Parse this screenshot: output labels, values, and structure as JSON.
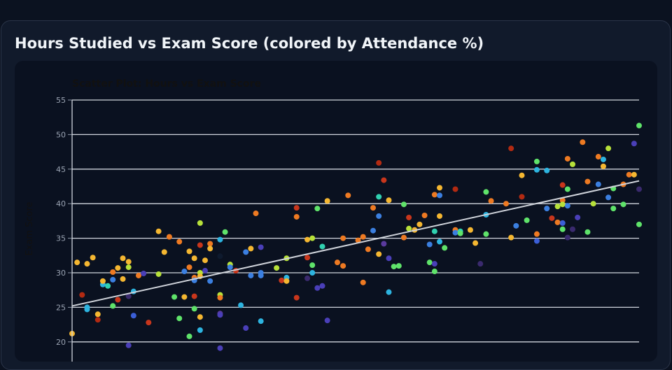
{
  "panel": {
    "title": "Hours Studied vs Exam Score (colored by Attendance %)"
  },
  "chart_data": {
    "type": "scatter",
    "title": "Scatter Plot: Hours vs Exam Score",
    "xlabel": "",
    "ylabel": "Exam Score",
    "ylim": [
      20,
      55
    ],
    "yticks": [
      20,
      25,
      30,
      35,
      40,
      45,
      50,
      55
    ],
    "grid": true,
    "points": [
      {
        "x": 0.0,
        "y": 21.2,
        "color": "#f5b731"
      },
      {
        "x": 0.07,
        "y": 31.5,
        "color": "#f5b731"
      },
      {
        "x": 0.14,
        "y": 26.8,
        "color": "#b22a12"
      },
      {
        "x": 0.21,
        "y": 31.3,
        "color": "#f5b731"
      },
      {
        "x": 0.21,
        "y": 25.0,
        "color": "#2db4e0"
      },
      {
        "x": 0.21,
        "y": 24.7,
        "color": "#2db4e0"
      },
      {
        "x": 0.29,
        "y": 32.2,
        "color": "#f5b731"
      },
      {
        "x": 0.36,
        "y": 24.0,
        "color": "#f5b731"
      },
      {
        "x": 0.36,
        "y": 23.2,
        "color": "#b22a12"
      },
      {
        "x": 0.43,
        "y": 28.3,
        "color": "#2db4e0"
      },
      {
        "x": 0.43,
        "y": 28.8,
        "color": "#f5b731"
      },
      {
        "x": 0.5,
        "y": 28.1,
        "color": "#30d1b0"
      },
      {
        "x": 0.57,
        "y": 30.1,
        "color": "#ee7a22"
      },
      {
        "x": 0.57,
        "y": 29.0,
        "color": "#3b7fe0"
      },
      {
        "x": 0.57,
        "y": 25.2,
        "color": "#5fe36a"
      },
      {
        "x": 0.64,
        "y": 30.7,
        "color": "#f5b731"
      },
      {
        "x": 0.64,
        "y": 26.1,
        "color": "#c8361c"
      },
      {
        "x": 0.71,
        "y": 32.1,
        "color": "#f5b731"
      },
      {
        "x": 0.71,
        "y": 29.1,
        "color": "#f5b731"
      },
      {
        "x": 0.79,
        "y": 31.6,
        "color": "#f5b731"
      },
      {
        "x": 0.79,
        "y": 30.8,
        "color": "#b7e13a"
      },
      {
        "x": 0.79,
        "y": 26.6,
        "color": "#3a2a6e"
      },
      {
        "x": 0.79,
        "y": 19.5,
        "color": "#4a3fb8"
      },
      {
        "x": 0.86,
        "y": 27.3,
        "color": "#2db4e0"
      },
      {
        "x": 0.86,
        "y": 23.8,
        "color": "#3b5fd8"
      },
      {
        "x": 0.93,
        "y": 29.6,
        "color": "#ee7a22"
      },
      {
        "x": 1.0,
        "y": 29.9,
        "color": "#4a3fb8"
      },
      {
        "x": 1.07,
        "y": 22.8,
        "color": "#c8361c"
      },
      {
        "x": 1.21,
        "y": 36.0,
        "color": "#f5b731"
      },
      {
        "x": 1.21,
        "y": 29.8,
        "color": "#b7e13a"
      },
      {
        "x": 1.29,
        "y": 33.0,
        "color": "#f5b731"
      },
      {
        "x": 1.36,
        "y": 35.2,
        "color": "#ee7a22"
      },
      {
        "x": 1.43,
        "y": 26.5,
        "color": "#5fe36a"
      },
      {
        "x": 1.5,
        "y": 34.5,
        "color": "#ee7a22"
      },
      {
        "x": 1.5,
        "y": 23.4,
        "color": "#5fe36a"
      },
      {
        "x": 1.57,
        "y": 30.2,
        "color": "#3b7fe0"
      },
      {
        "x": 1.57,
        "y": 26.5,
        "color": "#f5b731"
      },
      {
        "x": 1.64,
        "y": 33.1,
        "color": "#f5b731"
      },
      {
        "x": 1.64,
        "y": 30.8,
        "color": "#ee7a22"
      },
      {
        "x": 1.64,
        "y": 20.8,
        "color": "#5fe36a"
      },
      {
        "x": 1.71,
        "y": 32.1,
        "color": "#f5b731"
      },
      {
        "x": 1.71,
        "y": 29.3,
        "color": "#ee7a22"
      },
      {
        "x": 1.71,
        "y": 28.9,
        "color": "#3b7fe0"
      },
      {
        "x": 1.71,
        "y": 26.6,
        "color": "#c8361c"
      },
      {
        "x": 1.71,
        "y": 24.8,
        "color": "#5fe36a"
      },
      {
        "x": 1.79,
        "y": 37.2,
        "color": "#b7e13a"
      },
      {
        "x": 1.79,
        "y": 34.0,
        "color": "#c8361c"
      },
      {
        "x": 1.79,
        "y": 30.0,
        "color": "#b7e13a"
      },
      {
        "x": 1.79,
        "y": 29.5,
        "color": "#f5b731"
      },
      {
        "x": 1.79,
        "y": 23.6,
        "color": "#f5b731"
      },
      {
        "x": 1.79,
        "y": 21.7,
        "color": "#2db4e0"
      },
      {
        "x": 1.86,
        "y": 31.8,
        "color": "#f5b731"
      },
      {
        "x": 1.86,
        "y": 30.3,
        "color": "#4a3fb8"
      },
      {
        "x": 1.93,
        "y": 34.2,
        "color": "#ee7a22"
      },
      {
        "x": 1.93,
        "y": 33.5,
        "color": "#f5b731"
      },
      {
        "x": 1.93,
        "y": 28.8,
        "color": "#3b7fe0"
      },
      {
        "x": 2.07,
        "y": 34.8,
        "color": "#2db4e0"
      },
      {
        "x": 2.07,
        "y": 32.4,
        "color": "#0e1a2e"
      },
      {
        "x": 2.07,
        "y": 26.8,
        "color": "#b7e13a"
      },
      {
        "x": 2.07,
        "y": 26.4,
        "color": "#ee7a22"
      },
      {
        "x": 2.07,
        "y": 24.1,
        "color": "#5a3a9e"
      },
      {
        "x": 2.07,
        "y": 23.9,
        "color": "#4a3fb8"
      },
      {
        "x": 2.07,
        "y": 19.1,
        "color": "#4a3fb8"
      },
      {
        "x": 2.14,
        "y": 35.9,
        "color": "#5fe36a"
      },
      {
        "x": 2.21,
        "y": 31.2,
        "color": "#b7e13a"
      },
      {
        "x": 2.21,
        "y": 30.8,
        "color": "#3b7fe0"
      },
      {
        "x": 2.29,
        "y": 30.3,
        "color": "#c8361c"
      },
      {
        "x": 2.36,
        "y": 25.3,
        "color": "#2db4e0"
      },
      {
        "x": 2.43,
        "y": 33.0,
        "color": "#3b7fe0"
      },
      {
        "x": 2.43,
        "y": 22.0,
        "color": "#4a3fb8"
      },
      {
        "x": 2.5,
        "y": 33.5,
        "color": "#f5b731"
      },
      {
        "x": 2.5,
        "y": 29.6,
        "color": "#3b7fe0"
      },
      {
        "x": 2.57,
        "y": 38.6,
        "color": "#ee7a22"
      },
      {
        "x": 2.64,
        "y": 33.7,
        "color": "#4a3fb8"
      },
      {
        "x": 2.64,
        "y": 30.0,
        "color": "#3b7fe0"
      },
      {
        "x": 2.64,
        "y": 29.6,
        "color": "#3b7fe0"
      },
      {
        "x": 2.64,
        "y": 23.0,
        "color": "#2db4e0"
      },
      {
        "x": 2.86,
        "y": 30.7,
        "color": "#b7e13a"
      },
      {
        "x": 2.93,
        "y": 28.9,
        "color": "#c8361c"
      },
      {
        "x": 3.0,
        "y": 32.1,
        "color": "#b7e13a"
      },
      {
        "x": 3.0,
        "y": 29.3,
        "color": "#2db4e0"
      },
      {
        "x": 3.0,
        "y": 28.8,
        "color": "#f5b731"
      },
      {
        "x": 3.14,
        "y": 39.4,
        "color": "#c8361c"
      },
      {
        "x": 3.14,
        "y": 38.1,
        "color": "#ee7a22"
      },
      {
        "x": 3.14,
        "y": 26.4,
        "color": "#c8361c"
      },
      {
        "x": 3.29,
        "y": 34.8,
        "color": "#f5b731"
      },
      {
        "x": 3.29,
        "y": 32.2,
        "color": "#c8361c"
      },
      {
        "x": 3.29,
        "y": 29.2,
        "color": "#3a2a6e"
      },
      {
        "x": 3.36,
        "y": 35.0,
        "color": "#b7e13a"
      },
      {
        "x": 3.36,
        "y": 31.1,
        "color": "#5fe36a"
      },
      {
        "x": 3.36,
        "y": 30.0,
        "color": "#2db4e0"
      },
      {
        "x": 3.43,
        "y": 39.3,
        "color": "#5fe36a"
      },
      {
        "x": 3.43,
        "y": 27.8,
        "color": "#4a3fb8"
      },
      {
        "x": 3.5,
        "y": 33.8,
        "color": "#30d1b0"
      },
      {
        "x": 3.5,
        "y": 28.1,
        "color": "#4a3fb8"
      },
      {
        "x": 3.57,
        "y": 40.4,
        "color": "#f5b731"
      },
      {
        "x": 3.57,
        "y": 23.1,
        "color": "#4a3fb8"
      },
      {
        "x": 3.71,
        "y": 31.5,
        "color": "#ee7a22"
      },
      {
        "x": 3.79,
        "y": 35.0,
        "color": "#ee7a22"
      },
      {
        "x": 3.79,
        "y": 31.0,
        "color": "#ee7a22"
      },
      {
        "x": 3.86,
        "y": 41.2,
        "color": "#ee7a22"
      },
      {
        "x": 4.0,
        "y": 34.7,
        "color": "#ee7a22"
      },
      {
        "x": 4.07,
        "y": 35.2,
        "color": "#ee7a22"
      },
      {
        "x": 4.07,
        "y": 28.6,
        "color": "#ee7a22"
      },
      {
        "x": 4.14,
        "y": 33.4,
        "color": "#ee7a22"
      },
      {
        "x": 4.21,
        "y": 39.4,
        "color": "#ee7a22"
      },
      {
        "x": 4.21,
        "y": 36.1,
        "color": "#3b7fe0"
      },
      {
        "x": 4.29,
        "y": 45.9,
        "color": "#b22a12"
      },
      {
        "x": 4.29,
        "y": 41.0,
        "color": "#30d1b0"
      },
      {
        "x": 4.29,
        "y": 38.2,
        "color": "#3b7fe0"
      },
      {
        "x": 4.29,
        "y": 32.7,
        "color": "#f5b731"
      },
      {
        "x": 4.36,
        "y": 43.4,
        "color": "#c8361c"
      },
      {
        "x": 4.36,
        "y": 34.2,
        "color": "#5a3a9e"
      },
      {
        "x": 4.43,
        "y": 40.5,
        "color": "#f5b731"
      },
      {
        "x": 4.43,
        "y": 32.1,
        "color": "#4a3fb8"
      },
      {
        "x": 4.43,
        "y": 27.2,
        "color": "#2db4e0"
      },
      {
        "x": 4.5,
        "y": 30.9,
        "color": "#5fe36a"
      },
      {
        "x": 4.57,
        "y": 31.0,
        "color": "#5fe36a"
      },
      {
        "x": 4.64,
        "y": 39.9,
        "color": "#5fe36a"
      },
      {
        "x": 4.64,
        "y": 35.1,
        "color": "#ee7a22"
      },
      {
        "x": 4.71,
        "y": 38.0,
        "color": "#c8361c"
      },
      {
        "x": 4.71,
        "y": 36.4,
        "color": "#b7e13a"
      },
      {
        "x": 4.79,
        "y": 36.2,
        "color": "#f5b731"
      },
      {
        "x": 4.86,
        "y": 37.0,
        "color": "#f5b731"
      },
      {
        "x": 4.93,
        "y": 38.3,
        "color": "#ee7a22"
      },
      {
        "x": 5.0,
        "y": 34.1,
        "color": "#3b7fe0"
      },
      {
        "x": 5.0,
        "y": 31.5,
        "color": "#5fe36a"
      },
      {
        "x": 5.07,
        "y": 41.3,
        "color": "#ee7a22"
      },
      {
        "x": 5.07,
        "y": 36.0,
        "color": "#30d1b0"
      },
      {
        "x": 5.07,
        "y": 31.3,
        "color": "#4a3fb8"
      },
      {
        "x": 5.07,
        "y": 30.2,
        "color": "#5fe36a"
      },
      {
        "x": 5.14,
        "y": 42.3,
        "color": "#f5b731"
      },
      {
        "x": 5.14,
        "y": 41.2,
        "color": "#3b7fe0"
      },
      {
        "x": 5.14,
        "y": 38.2,
        "color": "#f5b731"
      },
      {
        "x": 5.14,
        "y": 34.5,
        "color": "#2db4e0"
      },
      {
        "x": 5.21,
        "y": 33.6,
        "color": "#5fe36a"
      },
      {
        "x": 5.36,
        "y": 42.1,
        "color": "#b22a12"
      },
      {
        "x": 5.36,
        "y": 36.2,
        "color": "#ee7a22"
      },
      {
        "x": 5.36,
        "y": 35.8,
        "color": "#3b7fe0"
      },
      {
        "x": 5.43,
        "y": 36.0,
        "color": "#30d1b0"
      },
      {
        "x": 5.43,
        "y": 35.7,
        "color": "#5fe36a"
      },
      {
        "x": 5.57,
        "y": 36.2,
        "color": "#f5b731"
      },
      {
        "x": 5.64,
        "y": 34.3,
        "color": "#f5b731"
      },
      {
        "x": 5.71,
        "y": 31.3,
        "color": "#3a2a6e"
      },
      {
        "x": 5.79,
        "y": 41.7,
        "color": "#5fe36a"
      },
      {
        "x": 5.79,
        "y": 38.4,
        "color": "#2db4e0"
      },
      {
        "x": 5.79,
        "y": 35.6,
        "color": "#5fe36a"
      },
      {
        "x": 5.86,
        "y": 40.4,
        "color": "#ee7a22"
      },
      {
        "x": 6.07,
        "y": 40.0,
        "color": "#ee7a22"
      },
      {
        "x": 6.14,
        "y": 48.0,
        "color": "#b22a12"
      },
      {
        "x": 6.14,
        "y": 35.1,
        "color": "#f5b731"
      },
      {
        "x": 6.21,
        "y": 36.8,
        "color": "#3b7fe0"
      },
      {
        "x": 6.29,
        "y": 44.1,
        "color": "#f5b731"
      },
      {
        "x": 6.29,
        "y": 41.0,
        "color": "#b22a12"
      },
      {
        "x": 6.36,
        "y": 37.6,
        "color": "#5fe36a"
      },
      {
        "x": 6.5,
        "y": 46.1,
        "color": "#5fe36a"
      },
      {
        "x": 6.5,
        "y": 44.9,
        "color": "#2db4e0"
      },
      {
        "x": 6.5,
        "y": 35.6,
        "color": "#ee7a22"
      },
      {
        "x": 6.5,
        "y": 34.6,
        "color": "#3b5fd8"
      },
      {
        "x": 6.64,
        "y": 44.8,
        "color": "#2db4e0"
      },
      {
        "x": 6.64,
        "y": 39.3,
        "color": "#3b7fe0"
      },
      {
        "x": 6.71,
        "y": 37.9,
        "color": "#c8361c"
      },
      {
        "x": 6.79,
        "y": 39.6,
        "color": "#b7e13a"
      },
      {
        "x": 6.79,
        "y": 37.3,
        "color": "#ee7a22"
      },
      {
        "x": 6.86,
        "y": 42.7,
        "color": "#c8361c"
      },
      {
        "x": 6.86,
        "y": 40.5,
        "color": "#ee7a22"
      },
      {
        "x": 6.86,
        "y": 39.9,
        "color": "#b7e13a"
      },
      {
        "x": 6.86,
        "y": 37.2,
        "color": "#3b5fd8"
      },
      {
        "x": 6.86,
        "y": 36.3,
        "color": "#5fe36a"
      },
      {
        "x": 6.93,
        "y": 46.5,
        "color": "#ee7a22"
      },
      {
        "x": 6.93,
        "y": 42.1,
        "color": "#5fe36a"
      },
      {
        "x": 6.93,
        "y": 39.7,
        "color": "#3b7fe0"
      },
      {
        "x": 6.93,
        "y": 35.1,
        "color": "#3a2a6e"
      },
      {
        "x": 7.0,
        "y": 45.7,
        "color": "#b7e13a"
      },
      {
        "x": 7.0,
        "y": 36.3,
        "color": "#3a2a6e"
      },
      {
        "x": 7.07,
        "y": 38.0,
        "color": "#4a3fb8"
      },
      {
        "x": 7.14,
        "y": 48.9,
        "color": "#ee7a22"
      },
      {
        "x": 7.21,
        "y": 43.2,
        "color": "#ee7a22"
      },
      {
        "x": 7.21,
        "y": 35.9,
        "color": "#5fe36a"
      },
      {
        "x": 7.29,
        "y": 40.0,
        "color": "#b7e13a"
      },
      {
        "x": 7.36,
        "y": 46.8,
        "color": "#ee7a22"
      },
      {
        "x": 7.36,
        "y": 42.8,
        "color": "#3b7fe0"
      },
      {
        "x": 7.43,
        "y": 46.4,
        "color": "#2db4e0"
      },
      {
        "x": 7.43,
        "y": 45.4,
        "color": "#f5b731"
      },
      {
        "x": 7.5,
        "y": 48.0,
        "color": "#b7e13a"
      },
      {
        "x": 7.5,
        "y": 40.9,
        "color": "#3b7fe0"
      },
      {
        "x": 7.57,
        "y": 42.2,
        "color": "#5fe36a"
      },
      {
        "x": 7.57,
        "y": 39.3,
        "color": "#5fe36a"
      },
      {
        "x": 7.71,
        "y": 42.8,
        "color": "#ee7a22"
      },
      {
        "x": 7.71,
        "y": 39.9,
        "color": "#5fe36a"
      },
      {
        "x": 7.79,
        "y": 44.2,
        "color": "#ee7a22"
      },
      {
        "x": 7.86,
        "y": 48.7,
        "color": "#4a3fb8"
      },
      {
        "x": 7.86,
        "y": 44.2,
        "color": "#f5b731"
      },
      {
        "x": 7.93,
        "y": 51.3,
        "color": "#5fe36a"
      },
      {
        "x": 7.93,
        "y": 42.1,
        "color": "#3a2a6e"
      },
      {
        "x": 7.93,
        "y": 37.0,
        "color": "#5fe36a"
      }
    ],
    "trendline": {
      "x": [
        0,
        7.93
      ],
      "y": [
        25.2,
        43.3
      ]
    }
  }
}
